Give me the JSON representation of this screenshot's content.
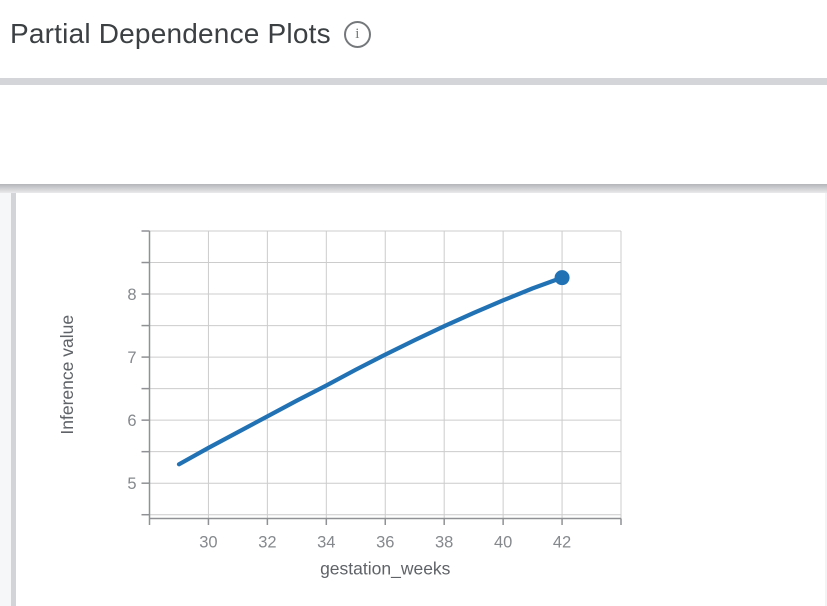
{
  "header": {
    "title": "Partial Dependence Plots",
    "info_icon": {
      "glyph": "i"
    }
  },
  "feature_section": {
    "label": "gestation_weeks",
    "state": "expanded"
  },
  "chart_data": {
    "type": "line",
    "title": "",
    "xlabel": "gestation_weeks",
    "ylabel": "Inference value",
    "x": [
      29,
      30,
      31,
      32,
      33,
      34,
      35,
      36,
      37,
      38,
      39,
      40,
      41,
      42
    ],
    "y": [
      5.3,
      5.56,
      5.81,
      6.06,
      6.31,
      6.55,
      6.8,
      7.04,
      7.27,
      7.49,
      7.7,
      7.9,
      8.09,
      8.26
    ],
    "xlim": [
      28,
      44
    ],
    "ylim": [
      4.44,
      9.0
    ],
    "x_gridlines": [
      28,
      30,
      32,
      34,
      36,
      38,
      40,
      42,
      44
    ],
    "y_gridlines": [
      4.5,
      5,
      5.5,
      6,
      6.5,
      7,
      7.5,
      8,
      8.5,
      9
    ],
    "x_tick_labels": [
      30,
      32,
      34,
      36,
      38,
      40,
      42
    ],
    "y_tick_labels": [
      5,
      6,
      7,
      8
    ],
    "grid": true,
    "legend": "none",
    "endpoint_marker": true,
    "line_color": "#2171b5",
    "grid_color": "#cccccc",
    "axis_color": "#8f9194",
    "tick_label_color": "#85898d",
    "axis_title_color": "#5f6368"
  }
}
